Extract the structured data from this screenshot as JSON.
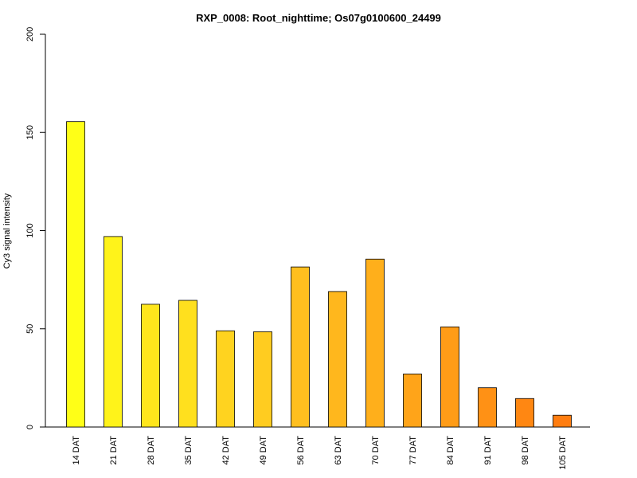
{
  "chart_data": {
    "type": "bar",
    "title": "RXP_0008: Root_nighttime; Os07g0100600_24499",
    "xlabel": "",
    "ylabel": "Cy3 signal intensity",
    "ylim": [
      0,
      200
    ],
    "yticks": [
      0,
      50,
      100,
      150,
      200
    ],
    "grid": false,
    "categories": [
      "14 DAT",
      "21 DAT",
      "28 DAT",
      "35 DAT",
      "42 DAT",
      "49 DAT",
      "56 DAT",
      "63 DAT",
      "70 DAT",
      "77 DAT",
      "84 DAT",
      "91 DAT",
      "98 DAT",
      "105 DAT"
    ],
    "values": [
      155.5,
      97,
      62.5,
      64.5,
      49,
      48.5,
      81.5,
      69,
      85.5,
      27,
      51,
      20,
      14.5,
      6
    ],
    "colors": [
      "#FFFF17",
      "#FFF31A",
      "#FFE61C",
      "#FFE01E",
      "#FFD31F",
      "#FFCC20",
      "#FFBF1F",
      "#FFB71D",
      "#FFAF1B",
      "#FFA419",
      "#FF9C17",
      "#FF9115",
      "#FF8712",
      "#FF7D10"
    ]
  }
}
